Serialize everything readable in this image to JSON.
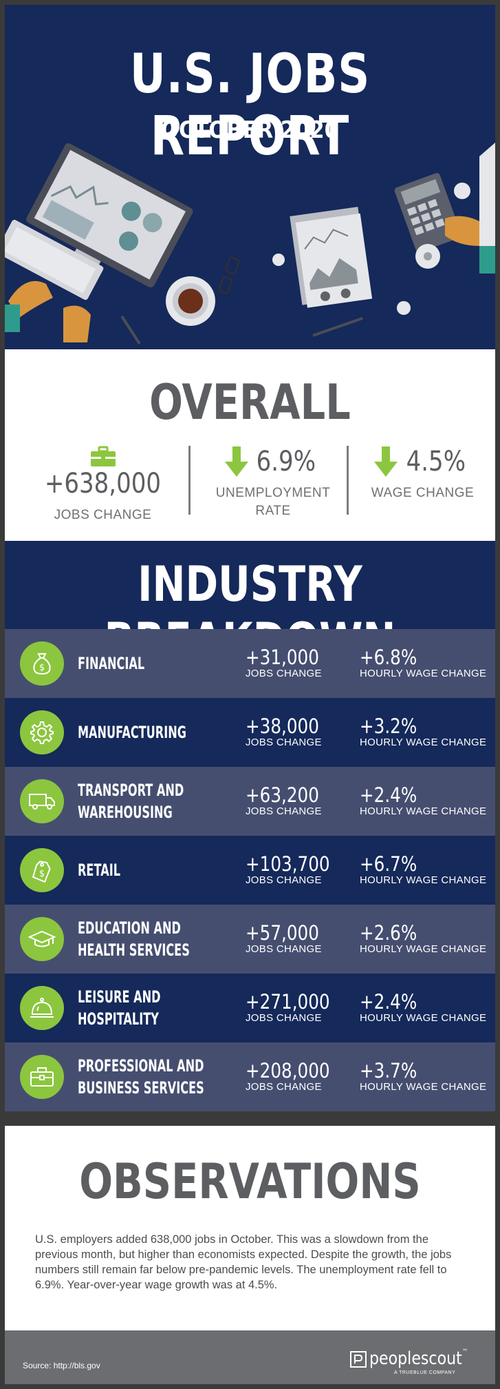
{
  "header": {
    "title": "U.S. JOBS REPORT",
    "subtitle": "OCTOBER 2020"
  },
  "overall": {
    "title": "OVERALL",
    "stats": [
      {
        "value": "+638,000",
        "label": "JOBS CHANGE",
        "icon": "briefcase-icon"
      },
      {
        "value": "6.9%",
        "label_line1": "UNEMPLOYMENT",
        "label_line2": "RATE",
        "icon": "arrow-down-icon"
      },
      {
        "value": "4.5%",
        "label": "WAGE CHANGE",
        "icon": "arrow-down-icon"
      }
    ]
  },
  "industry": {
    "title": "INDUSTRY BREAKDOWN",
    "jobs_label": "JOBS CHANGE",
    "wage_label": "HOURLY WAGE CHANGE",
    "rows": [
      {
        "name": [
          "FINANCIAL"
        ],
        "jobs": "+31,000",
        "wage": "+6.8%",
        "icon": "money-bag-icon"
      },
      {
        "name": [
          "MANUFACTURING"
        ],
        "jobs": "+38,000",
        "wage": "+3.2%",
        "icon": "gear-icon"
      },
      {
        "name": [
          "TRANSPORT AND",
          "WAREHOUSING"
        ],
        "jobs": "+63,200",
        "wage": "+2.4%",
        "icon": "truck-icon"
      },
      {
        "name": [
          "RETAIL"
        ],
        "jobs": "+103,700",
        "wage": "+6.7%",
        "icon": "price-tag-icon"
      },
      {
        "name": [
          "EDUCATION AND",
          "HEALTH SERVICES"
        ],
        "jobs": "+57,000",
        "wage": "+2.6%",
        "icon": "graduation-cap-icon"
      },
      {
        "name": [
          "LEISURE AND",
          "HOSPITALITY"
        ],
        "jobs": "+271,000",
        "wage": "+2.4%",
        "icon": "service-bell-icon"
      },
      {
        "name": [
          "PROFESSIONAL AND",
          "BUSINESS SERVICES"
        ],
        "jobs": "+208,000",
        "wage": "+3.7%",
        "icon": "toolbox-icon"
      }
    ]
  },
  "observations": {
    "title": "OBSERVATIONS",
    "text": "U.S. employers added 638,000 jobs in October. This was a slowdown from the previous month, but higher than economists expected. Despite the growth, the jobs numbers still remain far below pre-pandemic levels. The unemployment rate fell to 6.9%. Year-over-year wage growth was at 4.5%."
  },
  "footer": {
    "source": "Source: http://bls.gov",
    "logo_text": "peoplescout",
    "logo_tm": "™",
    "logo_sub": "A TRUEBLUE COMPANY"
  },
  "colors": {
    "navy": "#15295a",
    "slate": "#464e70",
    "green": "#8cc63f",
    "gray_text": "#5c5e61",
    "footer": "#6b6d70"
  }
}
